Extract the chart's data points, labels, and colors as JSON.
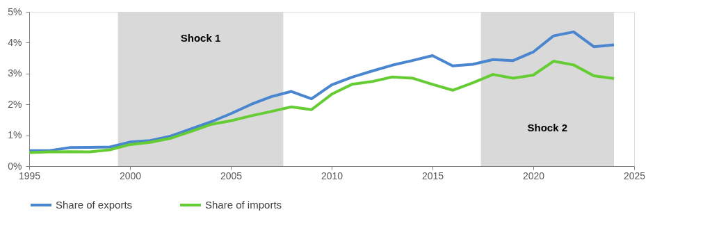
{
  "chart_data": {
    "type": "line",
    "x": [
      1995,
      1996,
      1997,
      1998,
      1999,
      2000,
      2001,
      2002,
      2003,
      2004,
      2005,
      2006,
      2007,
      2008,
      2009,
      2010,
      2011,
      2012,
      2013,
      2014,
      2015,
      2016,
      2017,
      2018,
      2019,
      2020,
      2021,
      2022,
      2023,
      2024
    ],
    "series": [
      {
        "name": "Share of exports",
        "color": "#4a86d0",
        "values": [
          0.5,
          0.5,
          0.6,
          0.61,
          0.62,
          0.78,
          0.83,
          0.97,
          1.2,
          1.43,
          1.7,
          2.0,
          2.25,
          2.42,
          2.18,
          2.63,
          2.88,
          3.08,
          3.27,
          3.42,
          3.58,
          3.25,
          3.3,
          3.45,
          3.42,
          3.7,
          4.22,
          4.35,
          3.87,
          3.93
        ]
      },
      {
        "name": "Share of imports",
        "color": "#66cc33",
        "values": [
          0.44,
          0.46,
          0.47,
          0.46,
          0.53,
          0.7,
          0.77,
          0.9,
          1.12,
          1.35,
          1.47,
          1.63,
          1.77,
          1.92,
          1.83,
          2.33,
          2.65,
          2.74,
          2.89,
          2.85,
          2.65,
          2.46,
          2.7,
          2.97,
          2.85,
          2.95,
          3.4,
          3.28,
          2.93,
          2.84
        ]
      }
    ],
    "xlim": [
      1995,
      2025
    ],
    "xticks": [
      1995,
      2000,
      2005,
      2010,
      2015,
      2020,
      2025
    ],
    "ylim": [
      0,
      5
    ],
    "yticks": [
      {
        "value": 0,
        "label": "0%"
      },
      {
        "value": 1,
        "label": "1%"
      },
      {
        "value": 2,
        "label": "2%"
      },
      {
        "value": 3,
        "label": "3%"
      },
      {
        "value": 4,
        "label": "4%"
      },
      {
        "value": 5,
        "label": "5%"
      }
    ],
    "bands": [
      {
        "axis": "x",
        "from": 1999.4,
        "to": 2007.6,
        "label": "Shock 1",
        "color": "#d9d9d9"
      },
      {
        "axis": "x",
        "from": 2017.4,
        "to": 2024,
        "label": "Shock 2",
        "color": "#d9d9d9"
      }
    ],
    "grid": false,
    "legend": "bottom",
    "marker": "none",
    "line_style": "solid"
  }
}
